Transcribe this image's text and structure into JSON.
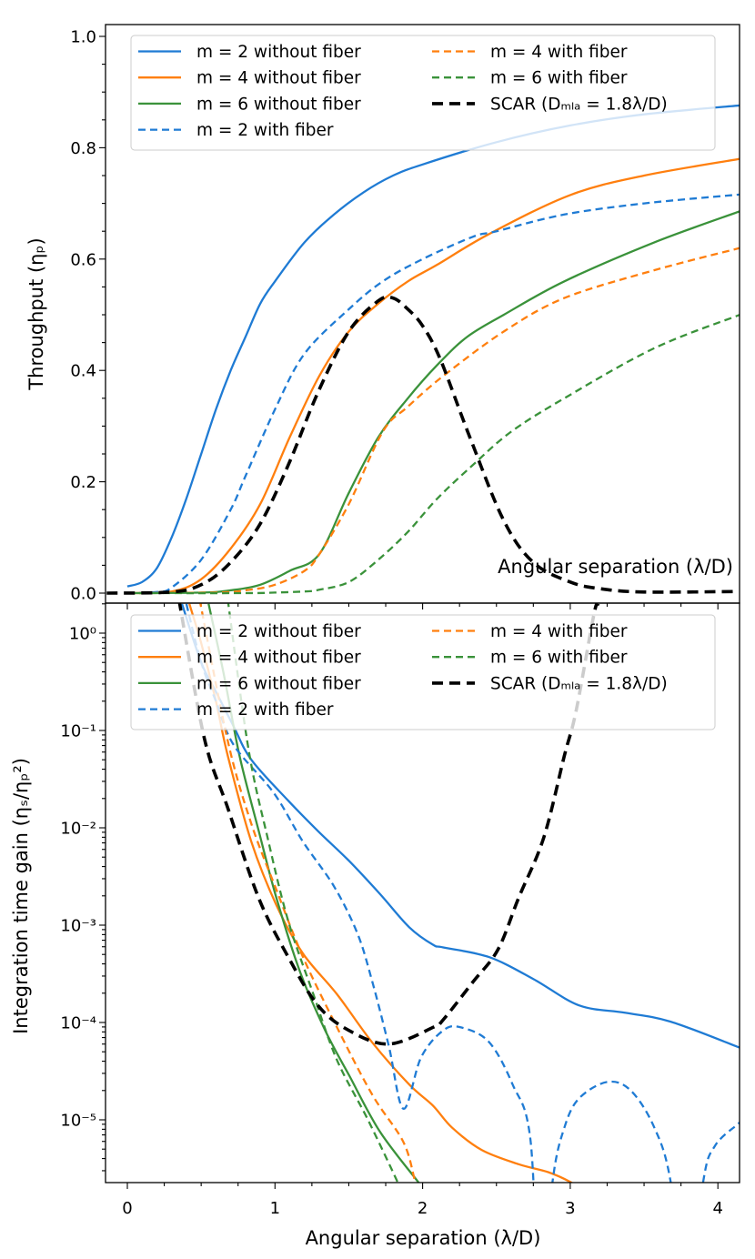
{
  "chart_data": [
    {
      "type": "line",
      "title": "",
      "xlabel": "Angular separation (λ/D)",
      "ylabel": "Throughput (ηₚ)",
      "xlim": [
        -0.14,
        4.15
      ],
      "ylim": [
        -0.02,
        1.05
      ],
      "yscale": "linear",
      "grid": false,
      "legend": "top-left, 2 columns",
      "x_ticks": [
        0,
        1,
        2,
        3,
        4
      ],
      "y_ticks": [
        0.0,
        0.2,
        0.4,
        0.6,
        0.8,
        1.0
      ],
      "y_tick_labels": [
        "0.0",
        "0.2",
        "0.4",
        "0.6",
        "0.8",
        "1.0"
      ],
      "series": [
        {
          "name": "m = 2 without fiber",
          "color": "#1f7bd4",
          "style": "solid",
          "x": [
            0,
            0.1,
            0.2,
            0.3,
            0.4,
            0.5,
            0.6,
            0.7,
            0.8,
            0.9,
            1.0,
            1.2,
            1.4,
            1.6,
            1.8,
            2.0,
            2.5,
            3.0,
            3.5,
            4.15
          ],
          "y": [
            0.012,
            0.02,
            0.045,
            0.1,
            0.17,
            0.25,
            0.33,
            0.4,
            0.46,
            0.52,
            0.56,
            0.63,
            0.68,
            0.72,
            0.75,
            0.77,
            0.81,
            0.84,
            0.86,
            0.876
          ]
        },
        {
          "name": "m = 4 without fiber",
          "color": "#ff7f0e",
          "style": "solid",
          "x": [
            0,
            0.3,
            0.5,
            0.7,
            0.9,
            1.1,
            1.3,
            1.5,
            1.7,
            1.9,
            2.1,
            2.45,
            3.0,
            3.5,
            4.15
          ],
          "y": [
            0,
            0.003,
            0.025,
            0.08,
            0.16,
            0.28,
            0.39,
            0.47,
            0.52,
            0.56,
            0.59,
            0.645,
            0.715,
            0.75,
            0.78
          ]
        },
        {
          "name": "m = 6 without fiber",
          "color": "#3a923a",
          "style": "solid",
          "x": [
            0,
            0.5,
            0.7,
            0.9,
            1.1,
            1.3,
            1.5,
            1.7,
            1.9,
            2.1,
            2.3,
            2.55,
            2.96,
            3.57,
            4.15
          ],
          "y": [
            0,
            0.001,
            0.005,
            0.015,
            0.04,
            0.07,
            0.18,
            0.28,
            0.35,
            0.41,
            0.46,
            0.5,
            0.56,
            0.63,
            0.686
          ]
        },
        {
          "name": "m = 2 with fiber",
          "color": "#1f7bd4",
          "style": "dashed",
          "x": [
            0,
            0.2,
            0.3,
            0.5,
            0.7,
            0.8,
            1.0,
            1.2,
            1.5,
            1.73,
            2.0,
            2.34,
            2.5,
            2.96,
            3.5,
            4.15
          ],
          "y": [
            0,
            0.002,
            0.01,
            0.06,
            0.15,
            0.21,
            0.33,
            0.43,
            0.51,
            0.56,
            0.6,
            0.64,
            0.65,
            0.68,
            0.7,
            0.716
          ]
        },
        {
          "name": "m = 4 with fiber",
          "color": "#ff7f0e",
          "style": "dashed",
          "x": [
            0,
            0.6,
            0.8,
            1.0,
            1.2,
            1.3,
            1.5,
            1.73,
            1.9,
            2.14,
            2.55,
            2.96,
            3.57,
            4.15
          ],
          "y": [
            0,
            0.001,
            0.005,
            0.015,
            0.04,
            0.07,
            0.16,
            0.29,
            0.335,
            0.39,
            0.47,
            0.53,
            0.58,
            0.62
          ]
        },
        {
          "name": "m = 6 with fiber",
          "color": "#3a923a",
          "style": "dashed",
          "x": [
            0,
            0.8,
            1.0,
            1.2,
            1.3,
            1.5,
            1.7,
            1.9,
            2.1,
            2.34,
            2.6,
            2.96,
            3.57,
            4.15
          ],
          "y": [
            0,
            0,
            0.001,
            0.003,
            0.006,
            0.02,
            0.06,
            0.11,
            0.17,
            0.23,
            0.29,
            0.35,
            0.44,
            0.5
          ]
        },
        {
          "name": "SCAR (Dₘₗₐ = 1.8λ/D)",
          "color": "#000000",
          "style": "dashed-bold",
          "x": [
            -0.14,
            0.3,
            0.5,
            0.68,
            0.89,
            1.09,
            1.29,
            1.5,
            1.7,
            1.8,
            1.9,
            2.0,
            2.12,
            2.32,
            2.55,
            2.75,
            3.0,
            3.2,
            3.5,
            4.15
          ],
          "y": [
            0,
            0.002,
            0.015,
            0.05,
            0.12,
            0.23,
            0.36,
            0.47,
            0.525,
            0.53,
            0.51,
            0.48,
            0.42,
            0.28,
            0.13,
            0.055,
            0.02,
            0.008,
            0.002,
            0.003
          ]
        }
      ]
    },
    {
      "type": "line",
      "title": "",
      "xlabel": "Angular separation (λ/D)",
      "ylabel": "Integration time gain (ηₛ/ηₚ²)",
      "xlim": [
        -0.14,
        4.15
      ],
      "ylim": [
        2.3e-06,
        2.0
      ],
      "yscale": "log",
      "grid": false,
      "legend": "top-left, 2 columns",
      "x_ticks": [
        0,
        1,
        2,
        3,
        4
      ],
      "x_tick_labels": [
        "0",
        "1",
        "2",
        "3",
        "4"
      ],
      "y_ticks": [
        1,
        0.1,
        0.01,
        0.001,
        0.0001,
        1e-05
      ],
      "y_tick_labels": [
        "10⁰",
        "10⁻¹",
        "10⁻²",
        "10⁻³",
        "10⁻⁴",
        "10⁻⁵"
      ],
      "series": [
        {
          "name": "m = 2 without fiber",
          "color": "#1f7bd4",
          "style": "solid",
          "x": [
            0.37,
            0.5,
            0.6,
            0.72,
            0.84,
            1.09,
            1.29,
            1.5,
            1.71,
            1.91,
            2.07,
            2.14,
            2.45,
            2.75,
            3.06,
            3.37,
            3.68,
            4.15
          ],
          "y": [
            2.0,
            0.5,
            0.25,
            0.11,
            0.05,
            0.019,
            0.0093,
            0.0046,
            0.0021,
            0.00095,
            0.00063,
            0.00059,
            0.00047,
            0.00028,
            0.00015,
            0.000126,
            0.000102,
            5.5e-05
          ]
        },
        {
          "name": "m = 4 without fiber",
          "color": "#ff7f0e",
          "style": "solid",
          "x": [
            0.42,
            0.5,
            0.6,
            0.68,
            0.84,
            1.01,
            1.19,
            1.42,
            1.66,
            1.91,
            2.07,
            2.2,
            2.4,
            2.65,
            2.85,
            3.0,
            3.1
          ],
          "y": [
            2.0,
            0.79,
            0.2,
            0.055,
            0.0072,
            0.0016,
            0.00051,
            0.000195,
            6.2e-05,
            2.3e-05,
            1.4e-05,
            8.3e-06,
            4.9e-06,
            3.5e-06,
            2.9e-06,
            2.3e-06,
            1.8e-06
          ]
        },
        {
          "name": "m = 6 without fiber",
          "color": "#3a923a",
          "style": "solid",
          "x": [
            0.55,
            0.65,
            0.76,
            0.89,
            1.01,
            1.17,
            1.34,
            1.5,
            1.71,
            1.97,
            2.0
          ],
          "y": [
            2.0,
            0.4,
            0.055,
            0.0093,
            0.0019,
            0.00033,
            8.3e-05,
            2.9e-05,
            7.6e-06,
            2.3e-06,
            2e-06
          ]
        },
        {
          "name": "m = 2 with fiber",
          "color": "#1f7bd4",
          "style": "dashed",
          "x": [
            0.4,
            0.5,
            0.6,
            0.72,
            0.99,
            1.19,
            1.4,
            1.56,
            1.66,
            1.77,
            1.87,
            1.99,
            2.14,
            2.26,
            2.45,
            2.61,
            2.73,
            2.8,
            2.88,
            2.96,
            3.06,
            3.25,
            3.41,
            3.57,
            3.68,
            3.79,
            3.9,
            3.98,
            4.13,
            4.15
          ],
          "y": [
            2.0,
            0.5,
            0.2,
            0.071,
            0.023,
            0.0072,
            0.0025,
            0.00081,
            0.00026,
            5.8e-05,
            1.3e-05,
            4.4e-05,
            8.3e-05,
            8.9e-05,
            6.3e-05,
            2.3e-05,
            6.3e-06,
            1e-07,
            2.3e-06,
            8.3e-06,
            1.66e-05,
            2.45e-05,
            2e-05,
            8.3e-06,
            2.3e-06,
            1e-07,
            2.3e-06,
            5.4e-06,
            8.9e-06,
            9.3e-06
          ]
        },
        {
          "name": "m = 4 with fiber",
          "color": "#ff7f0e",
          "style": "dashed",
          "x": [
            0.49,
            0.68,
            0.84,
            1.01,
            1.19,
            1.42,
            1.66,
            1.87,
            1.95,
            2.0
          ],
          "y": [
            2.2,
            0.078,
            0.011,
            0.0023,
            0.00047,
            8.9e-05,
            1.8e-05,
            5.9e-06,
            2.3e-06,
            1.3e-06
          ]
        },
        {
          "name": "m = 6 with fiber",
          "color": "#3a923a",
          "style": "dashed",
          "x": [
            0.68,
            0.82,
            0.95,
            1.09,
            1.26,
            1.42,
            1.63,
            1.83,
            1.9
          ],
          "y": [
            2.2,
            0.065,
            0.0079,
            0.0011,
            0.000195,
            4.1e-05,
            1e-05,
            2.3e-06,
            1.3e-06
          ]
        },
        {
          "name": "SCAR (Dₘₗₐ = 1.8λ/D)",
          "color": "#000000",
          "style": "dashed-bold",
          "x": [
            0.35,
            0.52,
            0.68,
            0.89,
            1.09,
            1.29,
            1.5,
            1.77,
            2.07,
            2.14,
            2.34,
            2.51,
            2.65,
            2.82,
            2.96,
            3.04,
            3.16,
            3.19
          ],
          "y": [
            2.2,
            0.085,
            0.016,
            0.0019,
            0.00047,
            0.00015,
            8.3e-05,
            6e-05,
            8.9e-05,
            0.000107,
            0.00026,
            0.00056,
            0.0019,
            0.0079,
            0.055,
            0.16,
            1.55,
            2.0
          ]
        }
      ]
    }
  ]
}
